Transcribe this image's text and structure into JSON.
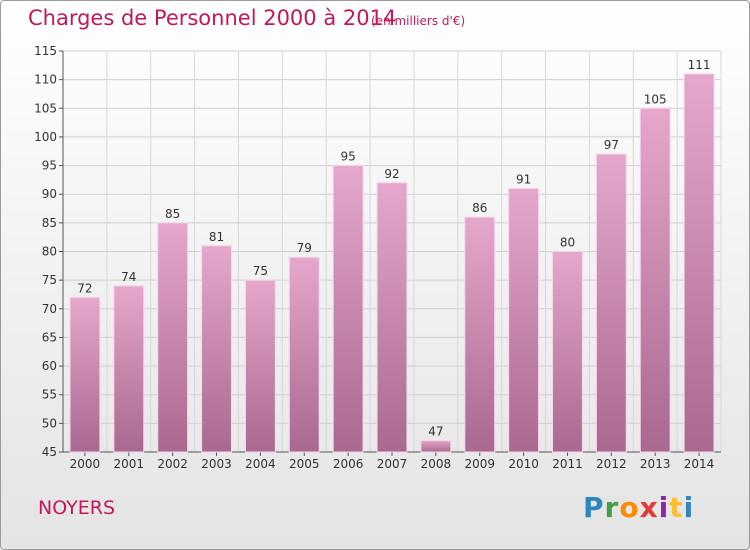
{
  "header": {
    "title": "Charges de Personnel 2000 à 2014",
    "subtitle": "(en milliers d'€)"
  },
  "footer": {
    "commune": "NOYERS",
    "logo_letters": [
      "P",
      "r",
      "o",
      "x",
      "i",
      "t",
      "i"
    ]
  },
  "colors": {
    "title": "#c2185b",
    "bar_top": "#e6a7cc",
    "bar_bottom": "#a8688f"
  },
  "chart_data": {
    "type": "bar",
    "title": "Charges de Personnel 2000 à 2014",
    "subtitle": "(en milliers d'€)",
    "categories": [
      "2000",
      "2001",
      "2002",
      "2003",
      "2004",
      "2005",
      "2006",
      "2007",
      "2008",
      "2009",
      "2010",
      "2011",
      "2012",
      "2013",
      "2014"
    ],
    "values": [
      72,
      74,
      85,
      81,
      75,
      79,
      95,
      92,
      47,
      86,
      91,
      80,
      97,
      105,
      111
    ],
    "ylim": [
      45,
      115
    ],
    "yticks": [
      45,
      50,
      55,
      60,
      65,
      70,
      75,
      80,
      85,
      90,
      95,
      100,
      105,
      110,
      115
    ],
    "grid": true,
    "data_labels": true
  }
}
